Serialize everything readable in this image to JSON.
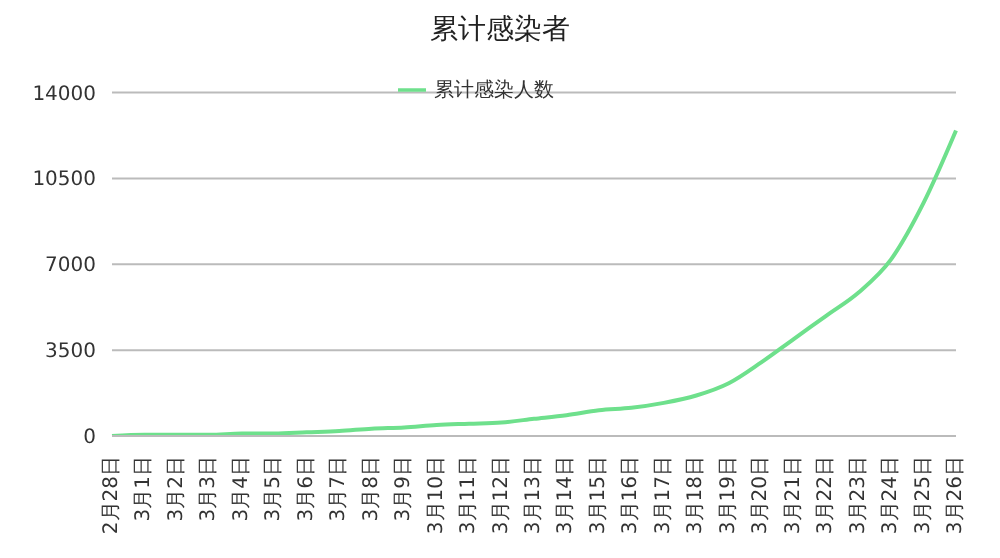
{
  "chart_data": {
    "type": "line",
    "title": "累计感染者",
    "categories": [
      "2月28日",
      "3月1日",
      "3月2日",
      "3月3日",
      "3月4日",
      "3月5日",
      "3月6日",
      "3月7日",
      "3月8日",
      "3月9日",
      "3月10日",
      "3月11日",
      "3月12日",
      "3月13日",
      "3月14日",
      "3月15日",
      "3月16日",
      "3月17日",
      "3月18日",
      "3月19日",
      "3月20日",
      "3月21日",
      "3月22日",
      "3月23日",
      "3月24日",
      "3月25日",
      "3月26日"
    ],
    "series": [
      {
        "name": "累计感染人数",
        "color": "#6ee08c",
        "values": [
          0,
          50,
          50,
          50,
          100,
          100,
          150,
          200,
          300,
          350,
          450,
          500,
          550,
          700,
          850,
          1050,
          1150,
          1350,
          1650,
          2150,
          3000,
          3950,
          4900,
          5850,
          7200,
          9500,
          12450
        ]
      }
    ],
    "ylim": [
      0,
      14000
    ],
    "yticks": [
      0,
      3500,
      7000,
      10500,
      14000
    ],
    "grid": "y",
    "legend": "top",
    "marker": "none"
  }
}
